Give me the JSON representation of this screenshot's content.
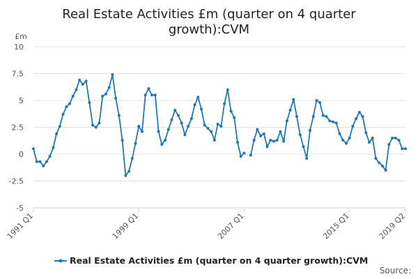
{
  "chart_data": {
    "type": "line",
    "title_lines": [
      "Real Estate Activities £m (quarter on 4 quarter",
      "growth):CVM"
    ],
    "y_unit": "£m",
    "ylim": [
      -5,
      10
    ],
    "yticks": [
      -5,
      -2.5,
      0,
      2.5,
      5,
      7.5,
      10
    ],
    "ytick_labels": [
      "-5",
      "-2.5",
      "0",
      "2.5",
      "5",
      "7.5",
      "10"
    ],
    "xtick_labels": [
      "1991 Q1",
      "1999 Q1",
      "2007 Q1",
      "2015 Q1",
      "2019 Q2"
    ],
    "xtick_index": [
      0,
      32,
      64,
      96,
      113
    ],
    "grid": true,
    "legend_position": "bottom",
    "series": [
      {
        "name": "Real Estate Activities £m (quarter on 4 quarter growth):CVM",
        "color": "#1f77b4",
        "start": "1991 Q1",
        "values": [
          0.5,
          -0.7,
          -0.7,
          -1.1,
          -0.7,
          -0.2,
          0.6,
          1.9,
          2.6,
          3.7,
          4.4,
          4.7,
          5.4,
          6.0,
          6.9,
          6.5,
          6.8,
          4.8,
          2.7,
          2.5,
          2.9,
          5.4,
          5.6,
          6.2,
          7.4,
          5.2,
          3.6,
          1.3,
          -2.0,
          -1.6,
          -0.4,
          1.0,
          2.6,
          2.1,
          5.5,
          6.1,
          5.5,
          5.5,
          2.1,
          0.9,
          1.3,
          2.3,
          3.2,
          4.1,
          3.6,
          2.9,
          1.8,
          2.6,
          3.3,
          4.6,
          5.3,
          4.2,
          2.7,
          2.4,
          2.1,
          1.3,
          2.8,
          2.6,
          4.7,
          6.0,
          4.0,
          3.4,
          1.1,
          -0.2,
          0.1,
          null,
          -0.1,
          1.3,
          2.3,
          1.7,
          1.9,
          0.7,
          1.3,
          1.2,
          1.3,
          2.1,
          1.2,
          3.1,
          4.1,
          5.1,
          3.5,
          1.8,
          0.7,
          -0.4,
          2.2,
          3.5,
          5.0,
          4.8,
          3.6,
          3.5,
          3.1,
          3.0,
          2.9,
          1.9,
          1.3,
          1.0,
          1.5,
          2.6,
          3.3,
          3.9,
          3.5,
          2.0,
          1.1,
          1.5,
          -0.4,
          -0.8,
          -1.1,
          -1.5,
          0.9,
          1.5,
          1.5,
          1.3,
          0.5,
          0.5
        ]
      }
    ]
  },
  "footer": {
    "source_label": "Source:"
  }
}
